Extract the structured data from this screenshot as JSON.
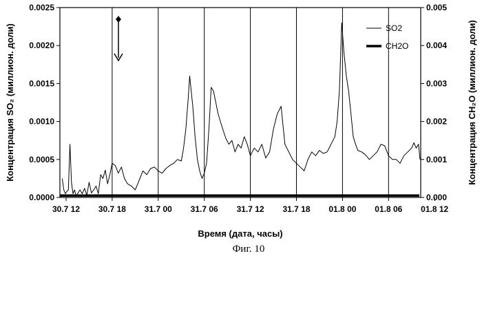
{
  "chart_data": {
    "type": "line",
    "xlabel": "Время (дата, часы)",
    "ylabel_left": "Концентрация SO₂ (миллион. доли)",
    "ylabel_right": "Концентрация CH₂O (миллион. доли)",
    "caption": "Фиг. 10",
    "x_unit": "hours",
    "x_range": [
      0,
      72
    ],
    "x_ticks": [
      {
        "value": 0,
        "label": "30.7 12"
      },
      {
        "value": 6,
        "label": "30.7 18"
      },
      {
        "value": 12,
        "label": "31.7 00"
      },
      {
        "value": 18,
        "label": "31.7 06"
      },
      {
        "value": 24,
        "label": "31.7 12"
      },
      {
        "value": 30,
        "label": "31.7 18"
      },
      {
        "value": 36,
        "label": "01.8 00"
      },
      {
        "value": 42,
        "label": "01.8 06"
      },
      {
        "value": 48,
        "label": "01.8 12"
      }
    ],
    "vertical_gridlines_at": [
      6,
      12,
      18,
      24,
      30,
      36,
      42
    ],
    "y_left": {
      "range": [
        0,
        0.0025
      ],
      "ticks": [
        "0.0000",
        "0.0005",
        "0.0010",
        "0.0015",
        "0.0020",
        "0.0025"
      ]
    },
    "y_right": {
      "range": [
        0,
        0.005
      ],
      "ticks": [
        "0.000",
        "0.001",
        "0.002",
        "0.003",
        "0.004",
        "0.005"
      ]
    },
    "legend_position": "top-right",
    "annotation": "double-headed vertical arrow near 30.7 20",
    "series": [
      {
        "name": "SO2",
        "axis": "left",
        "style": "thin",
        "x": [
          -0.5,
          -0.3,
          -0.1,
          0.1,
          0.3,
          0.5,
          0.7,
          0.9,
          1.1,
          1.3,
          1.5,
          1.8,
          2.1,
          2.4,
          2.7,
          3.0,
          3.3,
          3.6,
          3.9,
          4.2,
          4.5,
          4.8,
          5.1,
          5.4,
          5.7,
          6.0,
          6.4,
          6.8,
          7.2,
          7.6,
          8.0,
          8.5,
          9.0,
          9.5,
          10.0,
          10.5,
          11.0,
          11.5,
          12.0,
          12.5,
          13.0,
          13.5,
          14.0,
          14.5,
          15.0,
          15.3,
          15.6,
          15.9,
          16.1,
          16.3,
          16.5,
          16.8,
          17.1,
          17.4,
          17.7,
          18.0,
          18.3,
          18.6,
          18.9,
          19.2,
          19.5,
          19.8,
          20.1,
          20.4,
          20.8,
          21.2,
          21.6,
          22.0,
          22.4,
          22.8,
          23.2,
          23.6,
          24.0,
          24.5,
          25.0,
          25.5,
          26.0,
          26.5,
          27.0,
          27.5,
          28.0,
          28.5,
          29.0,
          29.5,
          30.0,
          30.5,
          31.0,
          31.5,
          32.0,
          32.5,
          33.0,
          33.5,
          34.0,
          34.5,
          35.0,
          35.3,
          35.6,
          35.9,
          36.2,
          36.5,
          36.8,
          37.1,
          37.4,
          37.7,
          38.0,
          38.5,
          39.0,
          39.5,
          40.0,
          40.5,
          41.0,
          41.5,
          42.0,
          42.5,
          43.0,
          43.5,
          44.0,
          44.5,
          45.0,
          45.3,
          45.6,
          45.9,
          46.1
        ],
        "y": [
          0.00025,
          0.0001,
          5e-05,
          8e-05,
          0.0001,
          0.0007,
          0.0002,
          5e-05,
          0.0001,
          2e-05,
          5e-05,
          0.0001,
          5e-05,
          0.00012,
          3e-05,
          0.0002,
          6e-05,
          0.0001,
          0.00015,
          5e-05,
          0.0003,
          0.00025,
          0.00036,
          0.00018,
          0.0003,
          0.00045,
          0.00042,
          0.00032,
          0.0004,
          0.00025,
          0.00018,
          0.00015,
          0.0001,
          0.00022,
          0.00035,
          0.0003,
          0.00038,
          0.0004,
          0.00035,
          0.00032,
          0.00038,
          0.00042,
          0.00045,
          0.0005,
          0.00048,
          0.00065,
          0.0009,
          0.0013,
          0.0016,
          0.0014,
          0.0012,
          0.0008,
          0.0005,
          0.00035,
          0.00025,
          0.00032,
          0.00045,
          0.0009,
          0.00145,
          0.0014,
          0.00125,
          0.0011,
          0.001,
          0.0009,
          0.00078,
          0.0007,
          0.00075,
          0.0006,
          0.0007,
          0.00065,
          0.0008,
          0.0007,
          0.00055,
          0.00065,
          0.0006,
          0.0007,
          0.00052,
          0.0006,
          0.0009,
          0.0011,
          0.0012,
          0.0007,
          0.0006,
          0.0005,
          0.00045,
          0.0004,
          0.00035,
          0.0005,
          0.0006,
          0.00055,
          0.00062,
          0.00058,
          0.0006,
          0.0007,
          0.0008,
          0.001,
          0.0014,
          0.0023,
          0.0019,
          0.0016,
          0.0014,
          0.0011,
          0.0008,
          0.0007,
          0.00062,
          0.0006,
          0.00056,
          0.0005,
          0.00055,
          0.0006,
          0.0007,
          0.00068,
          0.00055,
          0.0005,
          0.0005,
          0.00045,
          0.00055,
          0.0006,
          0.00065,
          0.00072,
          0.00065,
          0.0007,
          0.0005
        ]
      },
      {
        "name": "CH2O",
        "axis": "right",
        "style": "thick",
        "x": [
          -1.5,
          46.0
        ],
        "y": [
          5e-05,
          5e-05
        ]
      }
    ]
  }
}
